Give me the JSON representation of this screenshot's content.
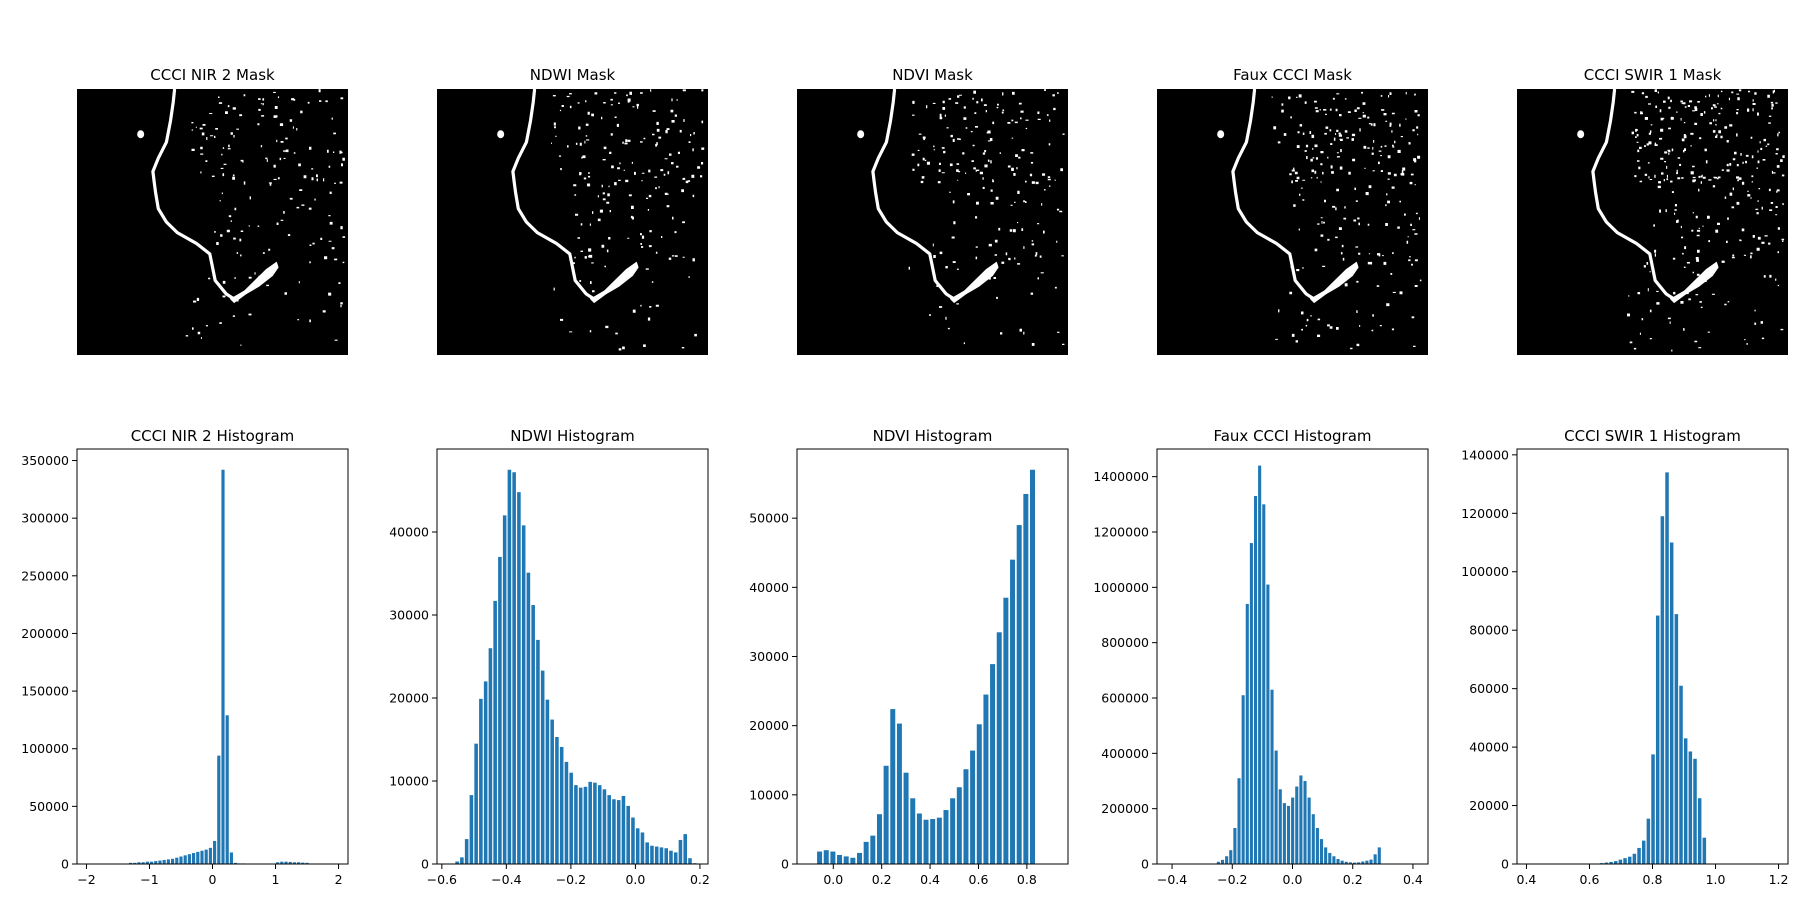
{
  "figure": {
    "bar_color": "#1f77b4",
    "mask_background": "#000000",
    "mask_foreground": "#ffffff"
  },
  "masks": [
    {
      "title": "CCCI NIR 2 Mask",
      "noise_density": 0.35
    },
    {
      "title": "NDWI Mask",
      "noise_density": 0.45
    },
    {
      "title": "NDVI Mask",
      "noise_density": 0.45
    },
    {
      "title": "Faux CCCI Mask",
      "noise_density": 0.65
    },
    {
      "title": "CCCI SWIR 1 Mask",
      "noise_density": 1.0
    }
  ],
  "chart_data": [
    {
      "type": "bar",
      "title": "CCCI NIR 2 Histogram",
      "xlim": [
        -2.15,
        2.15
      ],
      "ylim": [
        0,
        360000
      ],
      "xticks": [
        -2,
        -1,
        0,
        1,
        2
      ],
      "xtick_labels": [
        "−2",
        "−1",
        "0",
        "1",
        "2"
      ],
      "yticks": [
        0,
        50000,
        100000,
        150000,
        200000,
        250000,
        300000,
        350000
      ],
      "ytick_labels": [
        "0",
        "50000",
        "100000",
        "150000",
        "200000",
        "250000",
        "300000",
        "350000"
      ],
      "bin_width": 0.0667,
      "x": [
        -1.3,
        -1.2333,
        -1.1667,
        -1.1,
        -1.0333,
        -0.9667,
        -0.9,
        -0.8333,
        -0.7667,
        -0.7,
        -0.6333,
        -0.5667,
        -0.5,
        -0.4333,
        -0.3667,
        -0.3,
        -0.2333,
        -0.1667,
        -0.1,
        -0.0333,
        0.0333,
        0.1,
        0.1667,
        0.2333,
        0.3,
        0.3667,
        0.4333,
        0.5,
        1.0333,
        1.1,
        1.1667,
        1.2333,
        1.3,
        1.3667,
        1.4333,
        1.5
      ],
      "values": [
        1000,
        1000,
        1500,
        1500,
        2000,
        2000,
        2500,
        3000,
        3500,
        4000,
        4500,
        5500,
        6500,
        7500,
        8500,
        9500,
        10500,
        11500,
        12500,
        14000,
        20000,
        94000,
        342000,
        129000,
        10000,
        1000,
        500,
        500,
        1500,
        2000,
        2000,
        1800,
        1500,
        1500,
        1200,
        1000
      ]
    },
    {
      "type": "bar",
      "title": "NDWI Histogram",
      "xlim": [
        -0.615,
        0.225
      ],
      "ylim": [
        0,
        50000
      ],
      "xticks": [
        -0.6,
        -0.4,
        -0.2,
        0.0,
        0.2
      ],
      "xtick_labels": [
        "−0.6",
        "−0.4",
        "−0.2",
        "0.0",
        "0.2"
      ],
      "yticks": [
        0,
        10000,
        20000,
        30000,
        40000
      ],
      "ytick_labels": [
        "0",
        "10000",
        "20000",
        "30000",
        "40000"
      ],
      "bin_width": 0.0147,
      "x": [
        -0.5526,
        -0.5379,
        -0.5231,
        -0.5084,
        -0.4937,
        -0.479,
        -0.4642,
        -0.4495,
        -0.4348,
        -0.42,
        -0.4053,
        -0.3906,
        -0.3759,
        -0.3611,
        -0.3464,
        -0.3317,
        -0.3169,
        -0.3022,
        -0.2875,
        -0.2728,
        -0.258,
        -0.2433,
        -0.2286,
        -0.2138,
        -0.1991,
        -0.1844,
        -0.1697,
        -0.1549,
        -0.1402,
        -0.1255,
        -0.1107,
        -0.096,
        -0.0813,
        -0.0666,
        -0.0518,
        -0.0371,
        -0.0224,
        -0.0076,
        0.0071,
        0.0218,
        0.0365,
        0.0513,
        0.066,
        0.0807,
        0.0955,
        0.1102,
        0.1249,
        0.1396,
        0.1544,
        0.1691,
        0.1838
      ],
      "values": [
        300,
        800,
        3000,
        8300,
        14500,
        19900,
        22000,
        26000,
        31700,
        37000,
        42000,
        47500,
        47200,
        44800,
        40800,
        35100,
        31200,
        27000,
        23300,
        19800,
        17400,
        15300,
        14100,
        12300,
        11000,
        9500,
        9200,
        9300,
        9900,
        9800,
        9500,
        9000,
        8300,
        7800,
        7700,
        8200,
        7000,
        5600,
        4300,
        3800,
        2600,
        2200,
        2100,
        2000,
        1900,
        1600,
        1400,
        2900,
        3600,
        700,
        100
      ]
    },
    {
      "type": "bar",
      "title": "NDVI Histogram",
      "xlim": [
        -0.15,
        0.97
      ],
      "ylim": [
        0,
        60000
      ],
      "xticks": [
        0.0,
        0.2,
        0.4,
        0.6,
        0.8
      ],
      "xtick_labels": [
        "0.0",
        "0.2",
        "0.4",
        "0.6",
        "0.8"
      ],
      "yticks": [
        0,
        10000,
        20000,
        30000,
        40000,
        50000
      ],
      "ytick_labels": [
        "0",
        "10000",
        "20000",
        "30000",
        "40000",
        "50000"
      ],
      "bin_width": 0.0275,
      "x": [
        -0.0567,
        -0.0292,
        -0.0017,
        0.0258,
        0.0533,
        0.0808,
        0.1083,
        0.1358,
        0.1633,
        0.1908,
        0.2183,
        0.2458,
        0.2733,
        0.3008,
        0.3283,
        0.3558,
        0.3833,
        0.4108,
        0.4383,
        0.4658,
        0.4933,
        0.5208,
        0.5483,
        0.5758,
        0.6033,
        0.6308,
        0.6583,
        0.6858,
        0.7133,
        0.7408,
        0.7683,
        0.7958,
        0.8233
      ],
      "values": [
        1800,
        2000,
        1800,
        1300,
        1100,
        900,
        1600,
        3200,
        4100,
        7200,
        14200,
        22400,
        20300,
        13200,
        9500,
        7300,
        6400,
        6500,
        6700,
        7800,
        9500,
        11100,
        13700,
        16400,
        20200,
        24500,
        28900,
        33500,
        38500,
        44000,
        49000,
        53500,
        57000
      ]
    },
    {
      "type": "bar",
      "title": "Faux CCCI Histogram",
      "xlim": [
        -0.45,
        0.45
      ],
      "ylim": [
        0,
        1500000
      ],
      "xticks": [
        -0.4,
        -0.2,
        0.0,
        0.2,
        0.4
      ],
      "xtick_labels": [
        "−0.4",
        "−0.2",
        "0.0",
        "0.2",
        "0.4"
      ],
      "yticks": [
        0,
        200000,
        400000,
        600000,
        800000,
        1000000,
        1200000,
        1400000
      ],
      "ytick_labels": [
        "0",
        "200000",
        "400000",
        "600000",
        "800000",
        "1000000",
        "1200000",
        "1400000"
      ],
      "bin_width": 0.0137,
      "x": [
        -0.2461,
        -0.2324,
        -0.2187,
        -0.205,
        -0.1913,
        -0.1776,
        -0.1639,
        -0.1502,
        -0.1365,
        -0.1228,
        -0.1091,
        -0.0954,
        -0.0817,
        -0.068,
        -0.0543,
        -0.0406,
        -0.0269,
        -0.0132,
        0.0005,
        0.0142,
        0.0279,
        0.0416,
        0.0553,
        0.069,
        0.0827,
        0.0964,
        0.1101,
        0.1238,
        0.1375,
        0.1512,
        0.1649,
        0.1786,
        0.1923,
        0.206,
        0.2197,
        0.2334,
        0.2471,
        0.2608,
        0.2745,
        0.2882
      ],
      "values": [
        8000,
        15000,
        28000,
        50000,
        130000,
        310000,
        610000,
        940000,
        1160000,
        1330000,
        1440000,
        1300000,
        1010000,
        630000,
        410000,
        270000,
        220000,
        210000,
        240000,
        280000,
        320000,
        300000,
        240000,
        180000,
        130000,
        90000,
        60000,
        40000,
        28000,
        18000,
        12000,
        8000,
        6000,
        5000,
        6000,
        9000,
        12000,
        16000,
        35000,
        60000
      ]
    },
    {
      "type": "bar",
      "title": "CCCI SWIR 1 Histogram",
      "xlim": [
        0.37,
        1.23
      ],
      "ylim": [
        0,
        142000
      ],
      "xticks": [
        0.4,
        0.6,
        0.8,
        1.0,
        1.2
      ],
      "xtick_labels": [
        "0.4",
        "0.6",
        "0.8",
        "1.0",
        "1.2"
      ],
      "yticks": [
        0,
        20000,
        40000,
        60000,
        80000,
        100000,
        120000,
        140000
      ],
      "ytick_labels": [
        "0",
        "20000",
        "40000",
        "60000",
        "80000",
        "100000",
        "120000",
        "140000"
      ],
      "bin_width": 0.0148,
      "x": [
        0.6389,
        0.6537,
        0.6685,
        0.6833,
        0.6981,
        0.7129,
        0.7277,
        0.7425,
        0.7573,
        0.7721,
        0.7869,
        0.8017,
        0.8165,
        0.8313,
        0.8461,
        0.8609,
        0.8757,
        0.8905,
        0.9053,
        0.9201,
        0.9349,
        0.9497,
        0.9645
      ],
      "values": [
        300,
        500,
        700,
        1000,
        1500,
        2000,
        2500,
        3500,
        5500,
        8000,
        15500,
        37500,
        85000,
        119000,
        134000,
        110000,
        85500,
        61000,
        43000,
        38500,
        36000,
        22500,
        9000
      ]
    }
  ]
}
